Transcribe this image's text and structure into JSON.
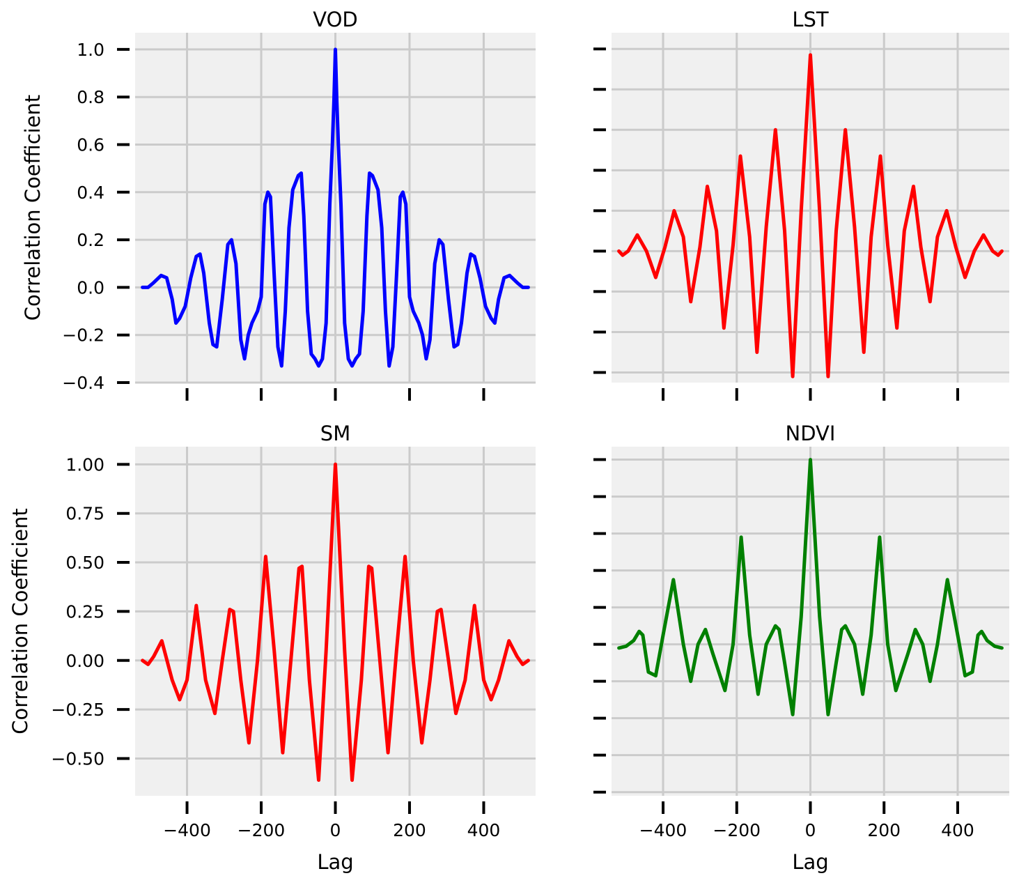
{
  "colors": {
    "vod": "#0000ff",
    "lst": "#ff0000",
    "sm": "#ff0000",
    "ndvi": "#008000",
    "background": "#f0f0f0",
    "grid": "#cbcbcb"
  },
  "chart_data": [
    {
      "id": "vod",
      "type": "line",
      "title": "VOD",
      "xlabel": "",
      "ylabel": "Correlation Coefficient",
      "xlim": [
        -540,
        540
      ],
      "ylim": [
        -0.4,
        1.07
      ],
      "xticks": [
        -400,
        -200,
        0,
        200,
        400
      ],
      "xtick_labels_visible": false,
      "yticks": [
        -0.4,
        -0.2,
        0.0,
        0.2,
        0.4,
        0.6,
        0.8,
        1.0
      ],
      "ytick_labels": [
        "−0.4",
        "−0.2",
        "0.0",
        "0.2",
        "0.4",
        "0.6",
        "0.8",
        "1.0"
      ],
      "grid": true,
      "line_color": "#0000ff",
      "series": [
        {
          "x": [
            -520,
            -505,
            -490,
            -470,
            -455,
            -440,
            -430,
            -420,
            -405,
            -390,
            -375,
            -365,
            -355,
            -340,
            -330,
            -320,
            -305,
            -290,
            -280,
            -268,
            -255,
            -245,
            -235,
            -225,
            -210,
            -200,
            -190,
            -182,
            -175,
            -165,
            -155,
            -145,
            -135,
            -125,
            -115,
            -100,
            -92,
            -85,
            -75,
            -65,
            -55,
            -45,
            -35,
            -25,
            -15,
            -8,
            -4,
            0,
            4,
            8,
            15,
            25,
            35,
            45,
            55,
            65,
            75,
            85,
            92,
            100,
            115,
            125,
            135,
            145,
            155,
            165,
            175,
            182,
            190,
            200,
            210,
            225,
            235,
            245,
            255,
            268,
            280,
            290,
            305,
            320,
            330,
            340,
            355,
            365,
            375,
            390,
            405,
            420,
            430,
            440,
            455,
            470,
            490,
            505,
            520
          ],
          "y": [
            0.0,
            0.0,
            0.02,
            0.05,
            0.04,
            -0.05,
            -0.15,
            -0.13,
            -0.08,
            0.04,
            0.13,
            0.14,
            0.06,
            -0.15,
            -0.24,
            -0.25,
            -0.05,
            0.18,
            0.2,
            0.1,
            -0.22,
            -0.3,
            -0.2,
            -0.15,
            -0.1,
            -0.04,
            0.35,
            0.4,
            0.38,
            0.05,
            -0.25,
            -0.33,
            -0.1,
            0.25,
            0.41,
            0.47,
            0.48,
            0.3,
            -0.1,
            -0.28,
            -0.3,
            -0.33,
            -0.3,
            -0.15,
            0.35,
            0.6,
            0.78,
            1.0,
            0.78,
            0.6,
            0.35,
            -0.15,
            -0.3,
            -0.33,
            -0.3,
            -0.28,
            -0.1,
            0.3,
            0.48,
            0.47,
            0.41,
            0.25,
            -0.1,
            -0.33,
            -0.25,
            0.05,
            0.38,
            0.4,
            0.35,
            -0.04,
            -0.1,
            -0.15,
            -0.2,
            -0.3,
            -0.22,
            0.1,
            0.2,
            0.18,
            -0.05,
            -0.25,
            -0.24,
            -0.15,
            0.06,
            0.14,
            0.13,
            0.04,
            -0.08,
            -0.13,
            -0.15,
            -0.05,
            0.04,
            0.05,
            0.02,
            0.0,
            0.0
          ]
        }
      ]
    },
    {
      "id": "lst",
      "type": "line",
      "title": "LST",
      "xlabel": "",
      "ylabel": "",
      "xlim": [
        -540,
        540
      ],
      "ylim": [
        -0.65,
        1.08
      ],
      "xticks": [
        -400,
        -200,
        0,
        200,
        400
      ],
      "xtick_labels_visible": false,
      "yticks": [
        -0.6,
        -0.4,
        -0.2,
        0.0,
        0.2,
        0.4,
        0.6,
        0.8,
        1.0
      ],
      "ytick_labels_visible": false,
      "grid": true,
      "line_color": "#ff0000",
      "series": [
        {
          "x": [
            -520,
            -510,
            -495,
            -470,
            -445,
            -420,
            -395,
            -370,
            -345,
            -325,
            -300,
            -280,
            -255,
            -235,
            -210,
            -190,
            -165,
            -145,
            -120,
            -95,
            -70,
            -48,
            -25,
            0,
            25,
            48,
            70,
            95,
            120,
            145,
            165,
            190,
            210,
            235,
            255,
            280,
            300,
            325,
            345,
            370,
            395,
            420,
            445,
            470,
            495,
            510,
            520
          ],
          "y": [
            0.0,
            -0.02,
            0.0,
            0.08,
            0.0,
            -0.13,
            0.02,
            0.2,
            0.07,
            -0.25,
            0.02,
            0.32,
            0.1,
            -0.38,
            0.03,
            0.47,
            0.07,
            -0.5,
            0.12,
            0.6,
            0.1,
            -0.62,
            0.2,
            0.97,
            0.2,
            -0.62,
            0.1,
            0.6,
            0.12,
            -0.5,
            0.07,
            0.47,
            0.03,
            -0.38,
            0.1,
            0.32,
            0.02,
            -0.25,
            0.07,
            0.2,
            0.02,
            -0.13,
            0.0,
            0.08,
            0.0,
            -0.02,
            0.0
          ]
        }
      ]
    },
    {
      "id": "sm",
      "type": "line",
      "title": "SM",
      "xlabel": "Lag",
      "ylabel": "Correlation Coefficient",
      "xlim": [
        -540,
        540
      ],
      "ylim": [
        -0.69,
        1.09
      ],
      "xticks": [
        -400,
        -200,
        0,
        200,
        400
      ],
      "xtick_labels": [
        "−400",
        "−200",
        "0",
        "200",
        "400"
      ],
      "yticks": [
        -0.5,
        -0.25,
        0.0,
        0.25,
        0.5,
        0.75,
        1.0
      ],
      "ytick_labels": [
        "−0.50",
        "−0.25",
        "0.00",
        "0.25",
        "0.50",
        "0.75",
        "1.00"
      ],
      "grid": true,
      "line_color": "#ff0000",
      "series": [
        {
          "x": [
            -520,
            -505,
            -490,
            -468,
            -440,
            -420,
            -400,
            -375,
            -350,
            -325,
            -305,
            -285,
            -275,
            -255,
            -233,
            -210,
            -188,
            -165,
            -142,
            -120,
            -98,
            -90,
            -70,
            -45,
            -25,
            0,
            25,
            45,
            70,
            90,
            98,
            120,
            142,
            165,
            188,
            210,
            233,
            255,
            275,
            285,
            305,
            325,
            350,
            375,
            400,
            420,
            440,
            468,
            490,
            505,
            520
          ],
          "y": [
            0.0,
            -0.02,
            0.02,
            0.1,
            -0.1,
            -0.2,
            -0.1,
            0.28,
            -0.1,
            -0.27,
            0.0,
            0.26,
            0.25,
            -0.1,
            -0.42,
            0.0,
            0.53,
            0.05,
            -0.47,
            0.0,
            0.47,
            0.48,
            -0.1,
            -0.61,
            0.05,
            1.0,
            0.05,
            -0.61,
            -0.1,
            0.48,
            0.47,
            0.0,
            -0.47,
            0.05,
            0.53,
            0.0,
            -0.42,
            -0.1,
            0.25,
            0.26,
            0.0,
            -0.27,
            -0.1,
            0.28,
            -0.1,
            -0.2,
            -0.1,
            0.1,
            0.02,
            -0.02,
            0.0
          ]
        }
      ]
    },
    {
      "id": "ndvi",
      "type": "line",
      "title": "NDVI",
      "xlabel": "Lag",
      "ylabel": "",
      "xlim": [
        -540,
        540
      ],
      "ylim": [
        -0.82,
        1.07
      ],
      "xticks": [
        -400,
        -200,
        0,
        200,
        400
      ],
      "xtick_labels": [
        "−400",
        "−200",
        "0",
        "200",
        "400"
      ],
      "yticks": [
        -0.8,
        -0.6,
        -0.4,
        -0.2,
        0.0,
        0.2,
        0.4,
        0.6,
        0.8,
        1.0
      ],
      "ytick_labels_visible": false,
      "grid": true,
      "line_color": "#008000",
      "series": [
        {
          "x": [
            -520,
            -500,
            -480,
            -465,
            -455,
            -440,
            -420,
            -400,
            -372,
            -345,
            -325,
            -305,
            -285,
            -265,
            -232,
            -210,
            -188,
            -165,
            -142,
            -120,
            -95,
            -85,
            -70,
            -48,
            -25,
            0,
            25,
            48,
            70,
            85,
            95,
            120,
            142,
            165,
            188,
            210,
            232,
            265,
            285,
            305,
            325,
            345,
            372,
            400,
            420,
            440,
            455,
            465,
            480,
            500,
            520
          ],
          "y": [
            -0.02,
            -0.01,
            0.02,
            0.07,
            0.05,
            -0.15,
            -0.17,
            0.05,
            0.35,
            0.0,
            -0.2,
            0.0,
            0.08,
            -0.05,
            -0.25,
            0.0,
            0.58,
            0.05,
            -0.27,
            0.0,
            0.1,
            0.08,
            -0.1,
            -0.38,
            0.15,
            1.0,
            0.15,
            -0.38,
            -0.1,
            0.08,
            0.1,
            0.0,
            -0.27,
            0.05,
            0.58,
            0.0,
            -0.25,
            -0.05,
            0.08,
            0.0,
            -0.2,
            0.0,
            0.35,
            0.05,
            -0.17,
            -0.15,
            0.05,
            0.07,
            0.02,
            -0.01,
            -0.02
          ]
        }
      ]
    }
  ]
}
